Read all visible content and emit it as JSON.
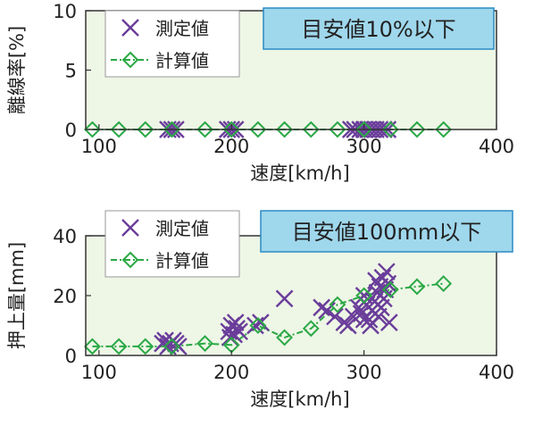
{
  "chart_data": [
    {
      "type": "scatter",
      "xlabel": "速度[km/h]",
      "ylabel": "離線率[%]",
      "xlim": [
        90,
        400
      ],
      "ylim": [
        0,
        10
      ],
      "xticks": [
        "100",
        "200",
        "300",
        "400"
      ],
      "yticks": [
        "0",
        "5",
        "10"
      ],
      "grid": false,
      "legend_position": "top-left",
      "annotation": "目安値10%以下",
      "colors": {
        "measured": "#6a3d9a",
        "calculated": "#2aa845",
        "plot_bg": "#eef6e6",
        "annotation_bg": "#9fd7ec",
        "annotation_border": "#2a8cc4"
      },
      "series": [
        {
          "name": "測定値",
          "marker": "x",
          "points": [
            [
              152,
              0
            ],
            [
              155,
              0
            ],
            [
              158,
              0
            ],
            [
              197,
              0
            ],
            [
              200,
              0
            ],
            [
              203,
              0
            ],
            [
              290,
              0
            ],
            [
              293,
              0
            ],
            [
              297,
              0
            ],
            [
              300,
              0
            ],
            [
              303,
              0
            ],
            [
              306,
              0
            ],
            [
              309,
              0
            ],
            [
              312,
              0
            ],
            [
              315,
              0
            ],
            [
              318,
              0
            ]
          ]
        },
        {
          "name": "計算値",
          "marker": "diamond",
          "line": "dash-dot",
          "points": [
            [
              95,
              0
            ],
            [
              115,
              0
            ],
            [
              135,
              0
            ],
            [
              155,
              0
            ],
            [
              180,
              0
            ],
            [
              200,
              0
            ],
            [
              220,
              0
            ],
            [
              240,
              0
            ],
            [
              260,
              0
            ],
            [
              280,
              0
            ],
            [
              300,
              0
            ],
            [
              320,
              0
            ],
            [
              340,
              0
            ],
            [
              360,
              0
            ]
          ]
        }
      ]
    },
    {
      "type": "scatter",
      "xlabel": "速度[km/h]",
      "ylabel": "押上量[mm]",
      "xlim": [
        90,
        400
      ],
      "ylim": [
        0,
        40
      ],
      "xticks": [
        "100",
        "200",
        "300",
        "400"
      ],
      "yticks": [
        "0",
        "20",
        "40"
      ],
      "grid": false,
      "legend_position": "top-left",
      "annotation": "目安値100mm以下",
      "colors": {
        "measured": "#6a3d9a",
        "calculated": "#2aa845",
        "plot_bg": "#eef6e6",
        "annotation_bg": "#9fd7ec",
        "annotation_border": "#2a8cc4"
      },
      "series": [
        {
          "name": "測定値",
          "marker": "x",
          "points": [
            [
              148,
              4
            ],
            [
              150,
              5
            ],
            [
              152,
              3
            ],
            [
              154,
              4
            ],
            [
              156,
              5
            ],
            [
              158,
              4
            ],
            [
              160,
              3
            ],
            [
              198,
              8
            ],
            [
              200,
              10
            ],
            [
              202,
              7
            ],
            [
              204,
              9
            ],
            [
              206,
              8
            ],
            [
              199,
              6
            ],
            [
              203,
              11
            ],
            [
              218,
              10
            ],
            [
              222,
              11
            ],
            [
              240,
              19
            ],
            [
              268,
              16
            ],
            [
              272,
              15
            ],
            [
              278,
              13
            ],
            [
              285,
              11
            ],
            [
              288,
              10
            ],
            [
              292,
              13
            ],
            [
              296,
              16
            ],
            [
              298,
              14
            ],
            [
              300,
              20
            ],
            [
              302,
              17
            ],
            [
              304,
              12
            ],
            [
              306,
              15
            ],
            [
              308,
              18
            ],
            [
              310,
              21
            ],
            [
              311,
              13
            ],
            [
              312,
              23
            ],
            [
              313,
              16
            ],
            [
              314,
              26
            ],
            [
              315,
              19
            ],
            [
              316,
              22
            ],
            [
              317,
              28
            ],
            [
              318,
              24
            ],
            [
              319,
              11
            ],
            [
              305,
              10
            ],
            [
              300,
              12
            ],
            [
              309,
              25
            ]
          ]
        },
        {
          "name": "計算値",
          "marker": "diamond",
          "line": "dash-dot",
          "points": [
            [
              95,
              3
            ],
            [
              115,
              3
            ],
            [
              135,
              3
            ],
            [
              155,
              3
            ],
            [
              180,
              4
            ],
            [
              200,
              3.5
            ],
            [
              220,
              10
            ],
            [
              240,
              6
            ],
            [
              260,
              9
            ],
            [
              280,
              17
            ],
            [
              300,
              20
            ],
            [
              320,
              22
            ],
            [
              340,
              23
            ],
            [
              360,
              24
            ]
          ]
        }
      ]
    }
  ]
}
